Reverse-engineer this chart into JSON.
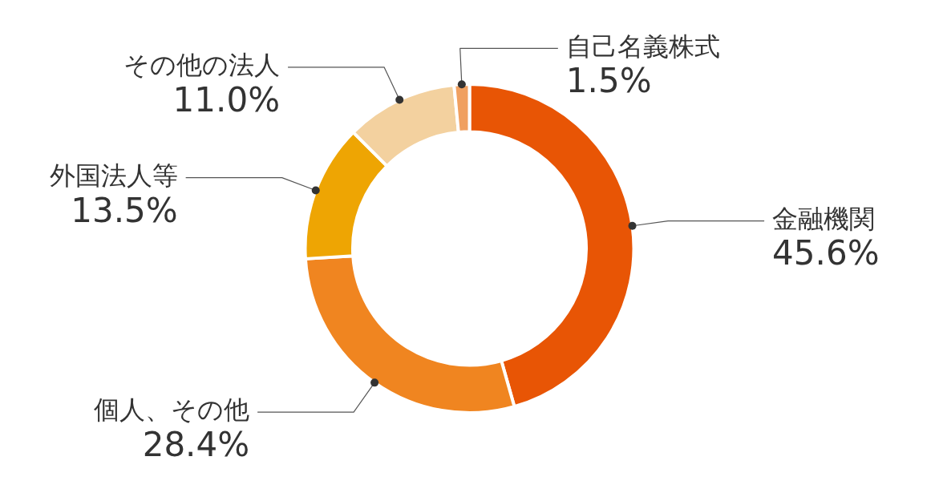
{
  "chart_data": {
    "type": "donut",
    "categories": [
      "金融機関",
      "個人、その他",
      "外国法人等",
      "その他の法人",
      "自己名義株式"
    ],
    "values": [
      45.6,
      28.4,
      13.5,
      11.0,
      1.5
    ],
    "value_labels": [
      "45.6%",
      "28.4%",
      "13.5%",
      "11.0%",
      "1.5%"
    ],
    "colors": [
      "#e85505",
      "#f08520",
      "#eea503",
      "#f3d19f",
      "#f0a060"
    ],
    "legend": false
  }
}
